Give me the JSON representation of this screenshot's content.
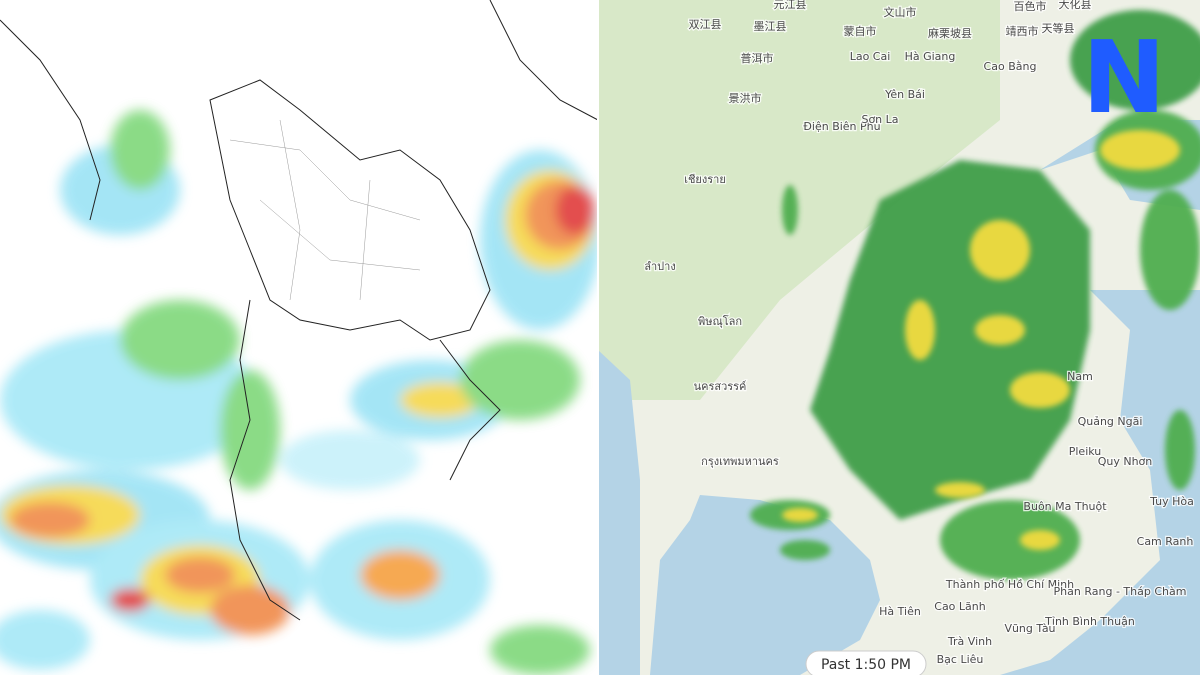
{
  "map": {
    "logo": "N",
    "timestamp": "Past 1:50 PM",
    "labels": [
      "元江县",
      "文山市",
      "百色市",
      "大化县",
      "双江县",
      "墨江县",
      "蒙自市",
      "麻栗坡县",
      "靖西市",
      "天等县",
      "普洱市",
      "Lao Cai",
      "Hà Giang",
      "Cao Bằng",
      "景洪市",
      "Yên Bái",
      "Điện Biên Phủ",
      "Sơn La",
      "เชียงราย",
      "ลำปาง",
      "พิษณุโลก",
      "นครสวรรค์",
      "กรุงเทพมหานคร",
      "Nam",
      "Quảng Ngãi",
      "Pleiku",
      "Quy Nhơn",
      "Buôn Ma Thuột",
      "Tuy Hòa",
      "Cam Ranh",
      "Thành phố Hồ Chí Minh",
      "Phan Rang - Tháp Chàm",
      "Tỉnh Bình Thuận",
      "Hà Tiên",
      "Cao Lãnh",
      "Vũng Tàu",
      "Trà Vinh",
      "Bạc Liêu"
    ]
  }
}
